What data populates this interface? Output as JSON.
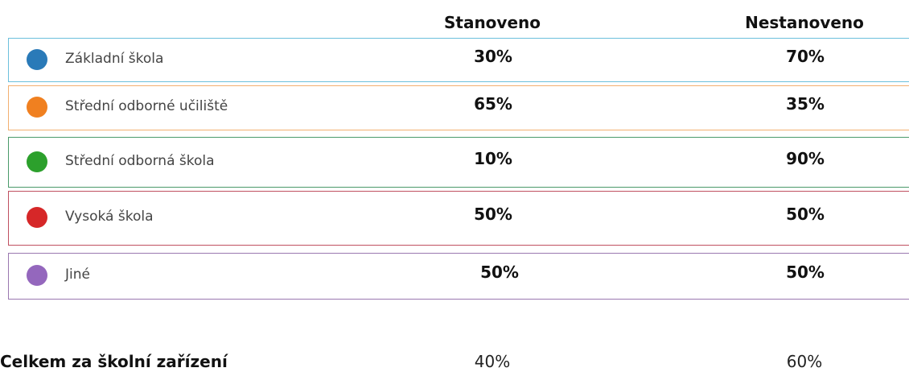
{
  "header": {
    "columns": [
      "Stanoveno",
      "Nestanoveno"
    ]
  },
  "rows": [
    {
      "name": "Základní škola",
      "color": "#2a7ab8",
      "border": "#6cc0dc",
      "values": [
        "30%",
        "70%"
      ]
    },
    {
      "name": "Střední odborné učiliště",
      "color": "#f08020",
      "border": "#f2b070",
      "values": [
        "65%",
        "35%"
      ]
    },
    {
      "name": "Střední odborná škola",
      "color": "#2ca02c",
      "border": "#4a9a6a",
      "values": [
        "10%",
        "90%"
      ]
    },
    {
      "name": "Vysoká škola",
      "color": "#d62728",
      "border": "#c05060",
      "values": [
        "50%",
        "50%"
      ]
    },
    {
      "name": "Jiné",
      "color": "#9467bd",
      "border": "#9a78b0",
      "values": [
        "50%",
        "50%"
      ]
    }
  ],
  "total": {
    "label": "Celkem za školní zařízení",
    "values": [
      "40%",
      "60%"
    ]
  }
}
